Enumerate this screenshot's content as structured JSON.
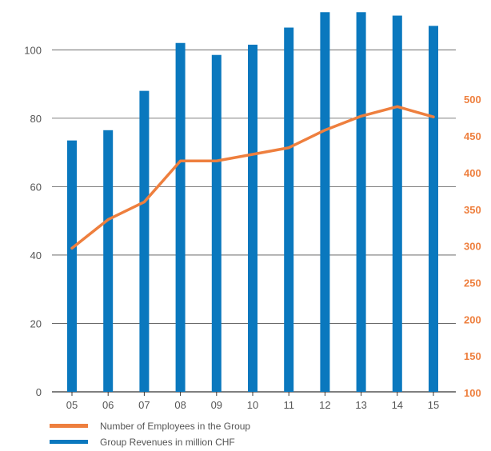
{
  "chart_data": {
    "type": "bar",
    "categories": [
      "05",
      "06",
      "07",
      "08",
      "09",
      "10",
      "11",
      "12",
      "13",
      "14",
      "15"
    ],
    "series": [
      {
        "name": "Group Revenues in million CHF",
        "type": "bar",
        "axis": "left",
        "color": "#0a78be",
        "values": [
          73.5,
          76.5,
          88,
          102,
          98.5,
          101.5,
          106.5,
          111,
          111,
          110,
          107
        ]
      },
      {
        "name": "Number of Employees in the Group",
        "type": "line",
        "axis": "right",
        "color": "#ee7f3e",
        "values": [
          297,
          336,
          360,
          416,
          416,
          425,
          434,
          458,
          477,
          490,
          476
        ]
      }
    ],
    "left_axis": {
      "ylim": [
        0,
        110
      ],
      "ticks": [
        0,
        20,
        40,
        60,
        80,
        100
      ]
    },
    "right_axis": {
      "ylim": [
        100,
        524
      ],
      "ticks": [
        100,
        150,
        200,
        250,
        300,
        350,
        400,
        450,
        500
      ]
    },
    "grid": true,
    "legend_position": "bottom-left"
  },
  "legend": [
    {
      "label": "Number of Employees in the Group",
      "color": "#ee7f3e",
      "kind": "line"
    },
    {
      "label": "Group Revenues in million CHF",
      "color": "#0a78be",
      "kind": "bar"
    }
  ]
}
